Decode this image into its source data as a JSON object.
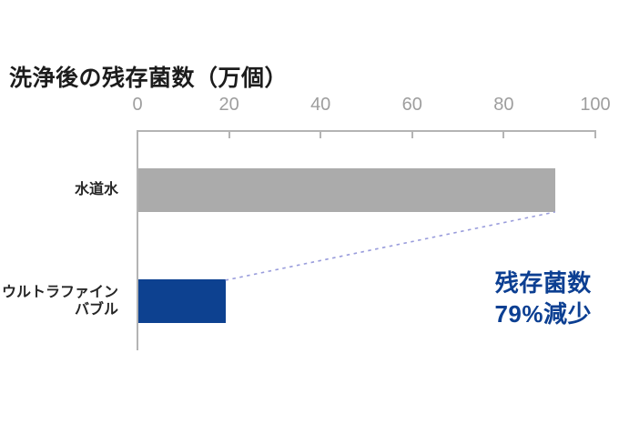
{
  "chart_data": {
    "type": "bar",
    "orientation": "horizontal",
    "title": "洗浄後の残存菌数（万個）",
    "unit": "万個",
    "categories": [
      "水道水",
      "ウルトラファインバブル"
    ],
    "category_display_lines": [
      [
        "水道水"
      ],
      [
        "ウルトラファイン",
        "バブル"
      ]
    ],
    "values": [
      91,
      19
    ],
    "xlim": [
      0,
      100
    ],
    "xticks": [
      0,
      20,
      40,
      60,
      80,
      100
    ],
    "grid": false,
    "legend": "none",
    "bar_colors": [
      "#ababab",
      "#0d4190"
    ],
    "axis_color": "#b4b4b4",
    "tick_label_color": "#9e9e9e",
    "connector_color": "#999cdc",
    "annotation": {
      "line1": "残存菌数",
      "line2": "79%減少",
      "color": "#0c3f92"
    }
  }
}
